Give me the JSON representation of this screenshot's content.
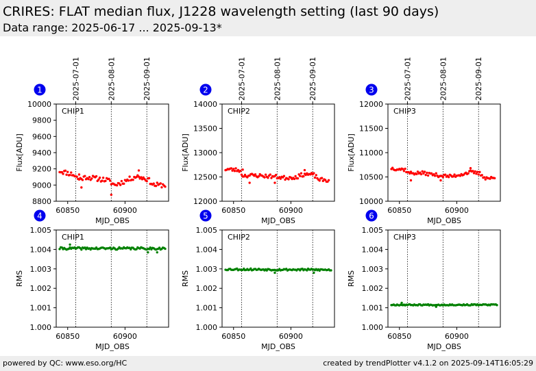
{
  "header": {
    "title": "CRIRES: FLAT median flux, J1228 wavelength setting (last 90 days)",
    "subtitle": "Data range: 2025-06-17 ... 2025-09-13*"
  },
  "footer": {
    "left": "powered by QC: www.eso.org/HC",
    "right": "created by trendPlotter v4.1.2 on 2025-09-14T16:05:29"
  },
  "colors": {
    "flux": "#ff0000",
    "rms": "#008000",
    "badge": "#0000ee",
    "header_bg": "#eeeeee"
  },
  "top_date_ticks": {
    "labels": [
      "2025-07-01",
      "2025-08-01",
      "2025-09-01"
    ],
    "mjd": [
      60857,
      60888,
      60919
    ]
  },
  "chart_data": [
    {
      "type": "scatter",
      "badge": "1",
      "chip_label": "CHIP1",
      "xlabel": "MJD_OBS",
      "ylabel": "Flux[ADU]",
      "xlim": [
        60840,
        60938
      ],
      "ylim": [
        8800,
        10000
      ],
      "xticks": [
        60850,
        60900
      ],
      "yticks": [
        8800,
        9000,
        9200,
        9400,
        9600,
        9800,
        10000
      ],
      "ytick_labels": [
        "8800",
        "9000",
        "9200",
        "9400",
        "9600",
        "9800",
        "10000"
      ],
      "vlines": [
        60857,
        60888,
        60919
      ],
      "color": "#ff0000",
      "series": [
        {
          "trend": [
            [
              60843,
              9175
            ],
            [
              60855,
              9130
            ],
            [
              60860,
              9070
            ],
            [
              60866,
              9100
            ],
            [
              60875,
              9080
            ],
            [
              60885,
              9060
            ],
            [
              60891,
              9000
            ],
            [
              60900,
              9050
            ],
            [
              60910,
              9110
            ],
            [
              60920,
              9070
            ],
            [
              60925,
              9000
            ],
            [
              60935,
              9000
            ]
          ],
          "noise": 30,
          "step": 1,
          "seed": 11,
          "outliers": [
            [
              60862,
              8970
            ],
            [
              60888,
              8880
            ],
            [
              60912,
              9180
            ],
            [
              60860,
              9130
            ]
          ]
        }
      ]
    },
    {
      "type": "scatter",
      "badge": "2",
      "chip_label": "CHIP2",
      "xlabel": "MJD_OBS",
      "ylabel": "Flux[ADU]",
      "xlim": [
        60840,
        60938
      ],
      "ylim": [
        12000,
        14000
      ],
      "xticks": [
        60850,
        60900
      ],
      "yticks": [
        12000,
        12500,
        13000,
        13500,
        14000
      ],
      "ytick_labels": [
        "12000",
        "12500",
        "13000",
        "13500",
        "14000"
      ],
      "vlines": [
        60857,
        60888,
        60919
      ],
      "color": "#ff0000",
      "series": [
        {
          "trend": [
            [
              60843,
              12660
            ],
            [
              60855,
              12640
            ],
            [
              60858,
              12530
            ],
            [
              60870,
              12530
            ],
            [
              60885,
              12510
            ],
            [
              60895,
              12480
            ],
            [
              60905,
              12500
            ],
            [
              60912,
              12560
            ],
            [
              60920,
              12540
            ],
            [
              60925,
              12440
            ],
            [
              60933,
              12430
            ]
          ],
          "noise": 40,
          "step": 1,
          "seed": 23,
          "outliers": [
            [
              60864,
              12380
            ],
            [
              60886,
              12380
            ],
            [
              60912,
              12640
            ],
            [
              60858,
              12650
            ]
          ]
        }
      ]
    },
    {
      "type": "scatter",
      "badge": "3",
      "chip_label": "CHIP3",
      "xlabel": "MJD_OBS",
      "ylabel": "Flux[ADU]",
      "xlim": [
        60840,
        60938
      ],
      "ylim": [
        10000,
        12000
      ],
      "xticks": [
        60850,
        60900
      ],
      "yticks": [
        10000,
        10500,
        11000,
        11500,
        12000
      ],
      "ytick_labels": [
        "10000",
        "10500",
        "11000",
        "11500",
        "12000"
      ],
      "vlines": [
        60857,
        60888,
        60919
      ],
      "color": "#ff0000",
      "series": [
        {
          "trend": [
            [
              60843,
              10680
            ],
            [
              60855,
              10650
            ],
            [
              60858,
              10580
            ],
            [
              60870,
              10580
            ],
            [
              60885,
              10530
            ],
            [
              60895,
              10510
            ],
            [
              60905,
              10560
            ],
            [
              60912,
              10600
            ],
            [
              60920,
              10570
            ],
            [
              60925,
              10480
            ],
            [
              60933,
              10470
            ]
          ],
          "noise": 35,
          "step": 1,
          "seed": 37,
          "outliers": [
            [
              60860,
              10430
            ],
            [
              60886,
              10430
            ],
            [
              60912,
              10680
            ]
          ]
        }
      ]
    },
    {
      "type": "scatter",
      "badge": "4",
      "chip_label": "CHIP1",
      "xlabel": "MJD_OBS",
      "ylabel": "RMS",
      "xlim": [
        60840,
        60938
      ],
      "ylim": [
        1.0,
        1.005
      ],
      "xticks": [
        60850,
        60900
      ],
      "yticks": [
        1.0,
        1.001,
        1.002,
        1.003,
        1.004,
        1.005
      ],
      "ytick_labels": [
        "1.000",
        "1.001",
        "1.002",
        "1.003",
        "1.004",
        "1.005"
      ],
      "vlines": [
        60857,
        60888,
        60919
      ],
      "color": "#008000",
      "series": [
        {
          "trend": [
            [
              60843,
              1.00405
            ],
            [
              60935,
              1.00405
            ]
          ],
          "noise": 6e-05,
          "step": 1,
          "seed": 41,
          "outliers": [
            [
              60852,
              1.00425
            ],
            [
              60920,
              1.00385
            ],
            [
              60928,
              1.00385
            ]
          ]
        }
      ]
    },
    {
      "type": "scatter",
      "badge": "5",
      "chip_label": "CHIP2",
      "xlabel": "MJD_OBS",
      "ylabel": "RMS",
      "xlim": [
        60840,
        60938
      ],
      "ylim": [
        1.0,
        1.005
      ],
      "xticks": [
        60850,
        60900
      ],
      "yticks": [
        1.0,
        1.001,
        1.002,
        1.003,
        1.004,
        1.005
      ],
      "ytick_labels": [
        "1.000",
        "1.001",
        "1.002",
        "1.003",
        "1.004",
        "1.005"
      ],
      "vlines": [
        60857,
        60888,
        60919
      ],
      "color": "#008000",
      "series": [
        {
          "trend": [
            [
              60843,
              1.00298
            ],
            [
              60935,
              1.00295
            ]
          ],
          "noise": 5e-05,
          "step": 1,
          "seed": 53,
          "outliers": [
            [
              60886,
              1.0028
            ],
            [
              60920,
              1.0028
            ]
          ]
        }
      ]
    },
    {
      "type": "scatter",
      "badge": "6",
      "chip_label": "CHIP3",
      "xlabel": "MJD_OBS",
      "ylabel": "RMS",
      "xlim": [
        60840,
        60938
      ],
      "ylim": [
        1.0,
        1.005
      ],
      "xticks": [
        60850,
        60900
      ],
      "yticks": [
        1.0,
        1.001,
        1.002,
        1.003,
        1.004,
        1.005
      ],
      "ytick_labels": [
        "1.000",
        "1.001",
        "1.002",
        "1.003",
        "1.004",
        "1.005"
      ],
      "vlines": [
        60857,
        60888,
        60919
      ],
      "color": "#008000",
      "series": [
        {
          "trend": [
            [
              60843,
              1.00115
            ],
            [
              60935,
              1.00115
            ]
          ],
          "noise": 3e-05,
          "step": 1,
          "seed": 67,
          "outliers": [
            [
              60852,
              1.00125
            ],
            [
              60882,
              1.00105
            ]
          ]
        }
      ]
    }
  ]
}
